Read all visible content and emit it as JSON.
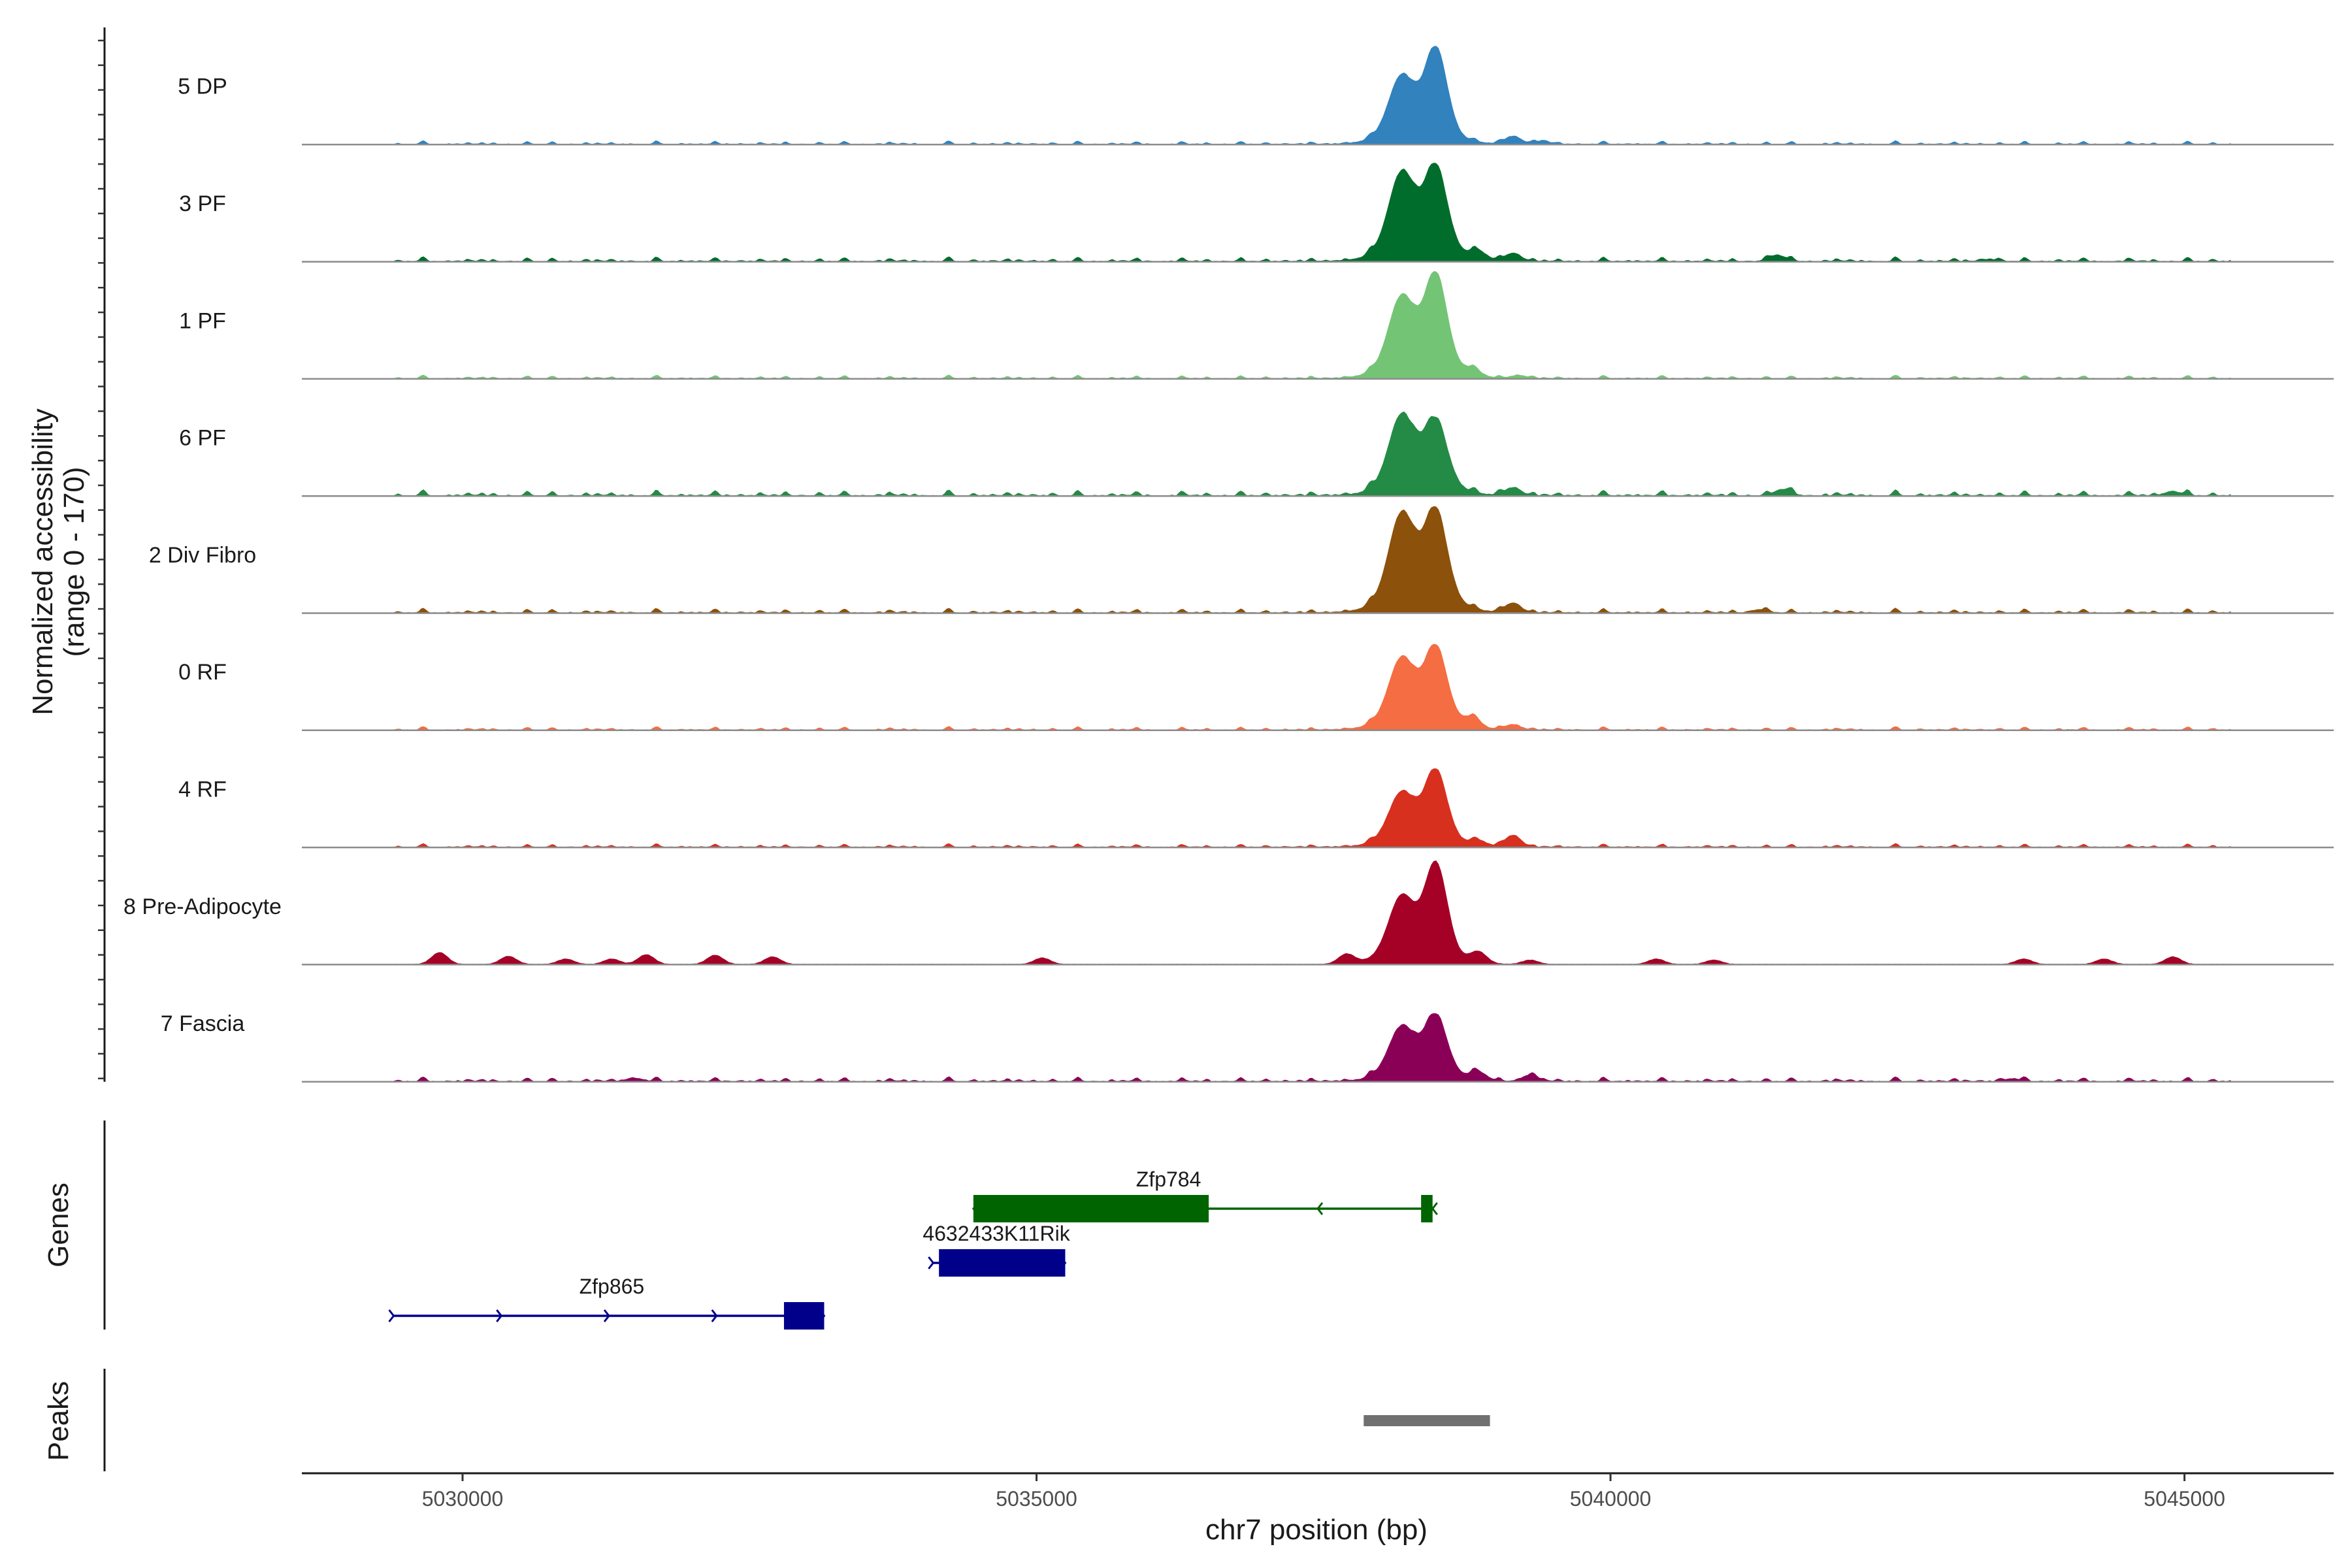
{
  "chart_data": {
    "type": "area",
    "region": "chr7",
    "xlabel": "chr7 position (bp)",
    "xlim": [
      5028600,
      5046300
    ],
    "ylabel": "Normalized accessibility",
    "ylabel_range": "(range 0 - 170)",
    "ylim": [
      0,
      170
    ],
    "x_ticks": [
      {
        "value": 5030000,
        "label": "5030000"
      },
      {
        "value": 5035000,
        "label": "5035000"
      },
      {
        "value": 5040000,
        "label": "5040000"
      },
      {
        "value": 5045000,
        "label": "5045000"
      }
    ],
    "main_peak": {
      "peak1": 5038180,
      "peak2": 5038480,
      "width1": 110,
      "width2": 95
    },
    "series": [
      {
        "name": "5 DP",
        "color": "#3182bd",
        "start": 5029400,
        "end": 5045400,
        "peak1_height": 100,
        "peak2_height": 150,
        "noise": 3,
        "bumps": [
          [
            5039150,
            15
          ],
          [
            5039400,
            6
          ]
        ]
      },
      {
        "name": "3 PF",
        "color": "#006d2c",
        "start": 5029400,
        "end": 5045400,
        "peak1_height": 130,
        "peak2_height": 140,
        "noise": 4,
        "bumps": [
          [
            5038850,
            15
          ],
          [
            5039150,
            15
          ],
          [
            5041450,
            12
          ],
          [
            5043300,
            4
          ]
        ]
      },
      {
        "name": "1 PF",
        "color": "#74c476",
        "start": 5029400,
        "end": 5045400,
        "peak1_height": 120,
        "peak2_height": 160,
        "noise": 3,
        "bumps": [
          [
            5038800,
            12
          ],
          [
            5039200,
            6
          ]
        ]
      },
      {
        "name": "6 PF",
        "color": "#238b45",
        "start": 5029400,
        "end": 5045400,
        "peak1_height": 120,
        "peak2_height": 110,
        "noise": 5,
        "bumps": [
          [
            5039150,
            15
          ],
          [
            5041500,
            12
          ],
          [
            5044900,
            8
          ]
        ]
      },
      {
        "name": "2 Div Fibro",
        "color": "#8c510a",
        "start": 5029400,
        "end": 5045400,
        "peak1_height": 145,
        "peak2_height": 150,
        "noise": 4,
        "bumps": [
          [
            5039150,
            18
          ],
          [
            5041300,
            6
          ]
        ]
      },
      {
        "name": "0 RF",
        "color": "#f46d43",
        "start": 5029400,
        "end": 5045400,
        "peak1_height": 105,
        "peak2_height": 125,
        "noise": 3,
        "bumps": [
          [
            5038800,
            18
          ],
          [
            5039150,
            10
          ]
        ]
      },
      {
        "name": "4 RF",
        "color": "#d7301f",
        "start": 5029400,
        "end": 5045400,
        "peak1_height": 80,
        "peak2_height": 120,
        "noise": 3,
        "bumps": [
          [
            5039150,
            22
          ],
          [
            5038850,
            10
          ]
        ]
      },
      {
        "name": "8 Pre-Adipocyte",
        "color": "#a50026",
        "start": 5029400,
        "end": 5045400,
        "peak1_height": 100,
        "peak2_height": 160,
        "noise": 0,
        "bumps": [
          [
            5029800,
            22
          ],
          [
            5030400,
            15
          ],
          [
            5030900,
            10
          ],
          [
            5031300,
            10
          ],
          [
            5031600,
            18
          ],
          [
            5032200,
            17
          ],
          [
            5032700,
            14
          ],
          [
            5035050,
            12
          ],
          [
            5037700,
            18
          ],
          [
            5038850,
            20
          ],
          [
            5039300,
            8
          ],
          [
            5040400,
            10
          ],
          [
            5040900,
            8
          ],
          [
            5043600,
            10
          ],
          [
            5044300,
            10
          ],
          [
            5044900,
            14
          ]
        ]
      },
      {
        "name": "7 Fascia",
        "color": "#8b0057",
        "start": 5029400,
        "end": 5045400,
        "peak1_height": 80,
        "peak2_height": 100,
        "noise": 4,
        "bumps": [
          [
            5038850,
            15
          ],
          [
            5039300,
            12
          ],
          [
            5031500,
            6
          ],
          [
            5043500,
            5
          ]
        ]
      }
    ],
    "genes_track_label": "Genes",
    "genes": [
      {
        "name": "Zfp784",
        "strand": "-",
        "color": "#006400",
        "start": 5034450,
        "end": 5038450,
        "label_pos": 5036150,
        "exons": [
          [
            5034450,
            5036500
          ],
          [
            5038350,
            5038450
          ]
        ]
      },
      {
        "name": "4632433K11Rik",
        "strand": "+",
        "color": "#00008b",
        "start": 5034100,
        "end": 5035250,
        "label_pos": 5034650,
        "exons": [
          [
            5034150,
            5035250
          ]
        ]
      },
      {
        "name": "Zfp865",
        "strand": "+",
        "color": "#00008b",
        "start": 5029400,
        "end": 5033150,
        "label_pos": 5031300,
        "exons": [
          [
            5032800,
            5033150
          ]
        ]
      }
    ],
    "peaks_track_label": "Peaks",
    "peaks": [
      [
        5037850,
        5038950
      ]
    ],
    "peak_color": "#707070"
  }
}
